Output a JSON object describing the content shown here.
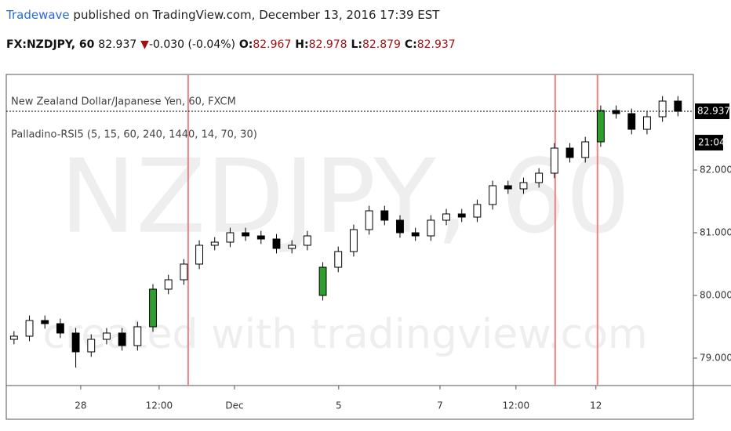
{
  "header": {
    "author": "Tradewave",
    "published": "published on TradingView.com, December 13, 2016 17:39 EST",
    "symbol": "FX:NZDJPY, 60",
    "price": 82.937,
    "arrow": "▼",
    "change": "-0.030 (-0.04%)",
    "o_label": "O:",
    "open": 82.967,
    "h_label": "H:",
    "high": 82.978,
    "l_label": "L:",
    "low": 82.879,
    "c_label": "C:",
    "close": 82.937
  },
  "chart_data": {
    "type": "candlestick",
    "title": "New Zealand Dollar/Japanese Yen, 60, FXCM",
    "subtitle": "Palladino-RSI5 (5, 15, 60, 240, 1440, 14, 70, 30)",
    "watermark": "NZDJPY, 60",
    "watermark2": "created with tradingview.com",
    "open": [
      79.3,
      79.35,
      79.6,
      79.55,
      79.4,
      79.1,
      79.3,
      79.4,
      79.2,
      79.5,
      80.1,
      80.25,
      80.5,
      80.8,
      80.85,
      81.0,
      80.95,
      80.9,
      80.75,
      80.8,
      80.0,
      80.45,
      80.7,
      81.05,
      81.35,
      81.2,
      81.0,
      80.95,
      81.2,
      81.3,
      81.25,
      81.45,
      81.75,
      81.7,
      81.8,
      81.95,
      82.35,
      82.2,
      82.45,
      82.95,
      82.9,
      82.65,
      82.85,
      83.1
    ],
    "high": [
      79.43,
      79.68,
      79.68,
      79.63,
      79.48,
      79.38,
      79.48,
      79.48,
      79.58,
      80.18,
      80.33,
      80.58,
      80.88,
      80.93,
      81.08,
      81.08,
      81.03,
      80.98,
      80.88,
      81.03,
      80.53,
      80.78,
      81.13,
      81.43,
      81.43,
      81.28,
      81.08,
      81.28,
      81.38,
      81.38,
      81.53,
      81.83,
      81.83,
      81.88,
      82.03,
      82.43,
      82.43,
      82.53,
      83.03,
      83.03,
      82.98,
      82.93,
      83.18,
      83.18
    ],
    "low": [
      79.22,
      79.27,
      79.47,
      79.32,
      78.85,
      79.02,
      79.22,
      79.12,
      79.12,
      79.42,
      80.02,
      80.17,
      80.42,
      80.72,
      80.77,
      80.87,
      80.82,
      80.67,
      80.67,
      80.72,
      79.92,
      80.37,
      80.62,
      80.97,
      81.12,
      80.92,
      80.87,
      80.87,
      81.12,
      81.17,
      81.17,
      81.37,
      81.62,
      81.62,
      81.72,
      81.87,
      82.12,
      82.12,
      82.37,
      82.82,
      82.57,
      82.57,
      82.77,
      82.857
    ],
    "close": [
      79.35,
      79.6,
      79.55,
      79.4,
      79.1,
      79.3,
      79.4,
      79.2,
      79.5,
      80.1,
      80.25,
      80.5,
      80.8,
      80.85,
      81.0,
      80.95,
      80.9,
      80.75,
      80.8,
      80.95,
      80.45,
      80.7,
      81.05,
      81.35,
      81.2,
      81.0,
      80.95,
      81.2,
      81.3,
      81.25,
      81.45,
      81.75,
      81.7,
      81.8,
      81.95,
      82.35,
      82.2,
      82.45,
      82.95,
      82.9,
      82.65,
      82.85,
      83.1,
      82.937
    ],
    "xlim": [
      0,
      44.5
    ],
    "ylim": [
      78.5625,
      83.525
    ],
    "xticks": [
      {
        "value": 4.82,
        "label": "28"
      },
      {
        "value": 9.9,
        "label": "12:00"
      },
      {
        "value": 14.78,
        "label": "Dec"
      },
      {
        "value": 21.53,
        "label": "5"
      },
      {
        "value": 28.09,
        "label": "7"
      },
      {
        "value": 33.01,
        "label": "12:00"
      },
      {
        "value": 38.19,
        "label": "12"
      }
    ],
    "yticks": [
      {
        "value": 79,
        "label": "79.000"
      },
      {
        "value": 80,
        "label": "80.000"
      },
      {
        "value": 81,
        "label": "81.000"
      },
      {
        "value": 82,
        "label": "82.000"
      }
    ],
    "vlines": [
      11.78,
      35.55,
      38.29
    ],
    "vline_color": "#f08080",
    "price_line": 82.937,
    "countdown": "21:04",
    "up_color": "#ffffff",
    "down_color": "#000000",
    "special_up_color": "#2e9e2e"
  }
}
